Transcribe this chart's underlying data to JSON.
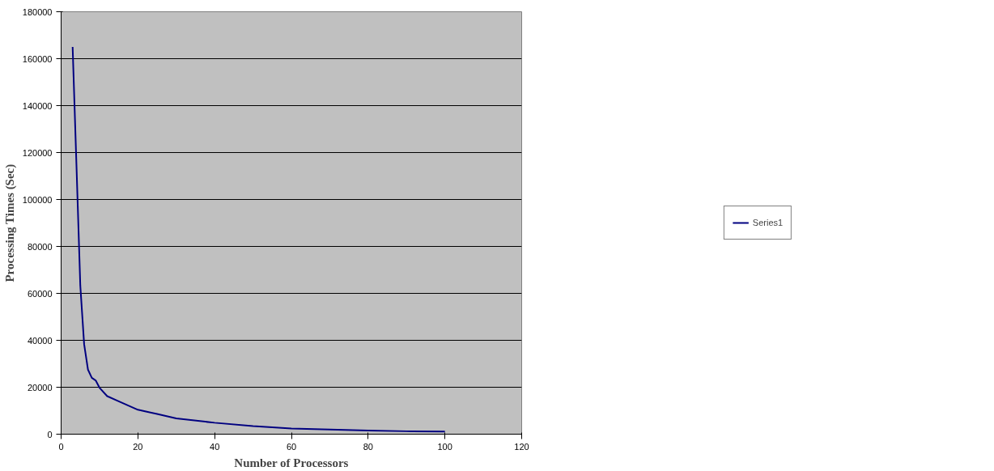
{
  "chart_data": {
    "type": "line",
    "xlabel": "Number of Processors",
    "ylabel": "Processing Times (Sec)",
    "x": [
      3,
      4,
      5,
      6,
      7,
      8,
      9,
      10,
      12,
      15,
      20,
      25,
      30,
      40,
      50,
      60,
      70,
      80,
      90,
      100
    ],
    "series": [
      {
        "name": "Series1",
        "color": "#000080",
        "values": [
          165000,
          114600,
          63300,
          38300,
          27500,
          24000,
          22900,
          19800,
          16200,
          14000,
          10400,
          8600,
          6700,
          4870,
          3440,
          2400,
          1970,
          1570,
          1250,
          1150
        ]
      }
    ],
    "xlim": [
      0,
      120
    ],
    "xticks": [
      0,
      20,
      40,
      60,
      80,
      100,
      120
    ],
    "ylim": [
      0,
      180000
    ],
    "yticks": [
      0,
      20000,
      40000,
      60000,
      80000,
      100000,
      120000,
      140000,
      160000,
      180000
    ],
    "grid": "y",
    "legend": "right",
    "marker": "none",
    "line_style": "solid"
  }
}
